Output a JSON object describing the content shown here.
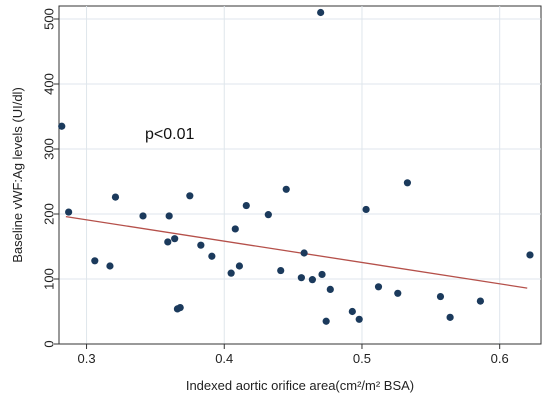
{
  "chart_data": {
    "type": "scatter",
    "title": "",
    "xlabel": "Indexed aortic orifice area(cm²/m² BSA)",
    "ylabel": "Baseline vWF:Ag levels (UI/dl)",
    "xlim": [
      0.28,
      0.63
    ],
    "ylim": [
      0,
      520
    ],
    "xticks": [
      "0.3",
      "0.4",
      "0.5",
      "0.6"
    ],
    "xtick_values": [
      0.3,
      0.4,
      0.5,
      0.6
    ],
    "yticks": [
      "0",
      "100",
      "200",
      "300",
      "400",
      "500"
    ],
    "ytick_values": [
      0,
      100,
      200,
      300,
      400,
      500
    ],
    "grid": true,
    "annotation": "p<0.01",
    "points": [
      {
        "x": 0.282,
        "y": 335
      },
      {
        "x": 0.287,
        "y": 203
      },
      {
        "x": 0.306,
        "y": 128
      },
      {
        "x": 0.317,
        "y": 120
      },
      {
        "x": 0.321,
        "y": 226
      },
      {
        "x": 0.341,
        "y": 197
      },
      {
        "x": 0.359,
        "y": 157
      },
      {
        "x": 0.36,
        "y": 197
      },
      {
        "x": 0.364,
        "y": 162
      },
      {
        "x": 0.366,
        "y": 54
      },
      {
        "x": 0.368,
        "y": 56
      },
      {
        "x": 0.375,
        "y": 228
      },
      {
        "x": 0.383,
        "y": 152
      },
      {
        "x": 0.391,
        "y": 135
      },
      {
        "x": 0.405,
        "y": 109
      },
      {
        "x": 0.408,
        "y": 177
      },
      {
        "x": 0.411,
        "y": 120
      },
      {
        "x": 0.416,
        "y": 213
      },
      {
        "x": 0.432,
        "y": 199
      },
      {
        "x": 0.441,
        "y": 113
      },
      {
        "x": 0.445,
        "y": 238
      },
      {
        "x": 0.456,
        "y": 102
      },
      {
        "x": 0.458,
        "y": 140
      },
      {
        "x": 0.464,
        "y": 99
      },
      {
        "x": 0.47,
        "y": 510
      },
      {
        "x": 0.471,
        "y": 107
      },
      {
        "x": 0.474,
        "y": 35
      },
      {
        "x": 0.477,
        "y": 84
      },
      {
        "x": 0.493,
        "y": 50
      },
      {
        "x": 0.498,
        "y": 38
      },
      {
        "x": 0.503,
        "y": 207
      },
      {
        "x": 0.512,
        "y": 88
      },
      {
        "x": 0.526,
        "y": 78
      },
      {
        "x": 0.533,
        "y": 248
      },
      {
        "x": 0.557,
        "y": 73
      },
      {
        "x": 0.564,
        "y": 41
      },
      {
        "x": 0.586,
        "y": 66
      },
      {
        "x": 0.622,
        "y": 137
      }
    ],
    "fit_line": {
      "x": [
        0.285,
        0.62
      ],
      "y": [
        196,
        86
      ]
    },
    "colors": {
      "points": "#1b3a5c",
      "fit_line": "#b5504a",
      "grid": "#dfe6ec",
      "axis": "#333333",
      "frame": "#333333"
    }
  }
}
